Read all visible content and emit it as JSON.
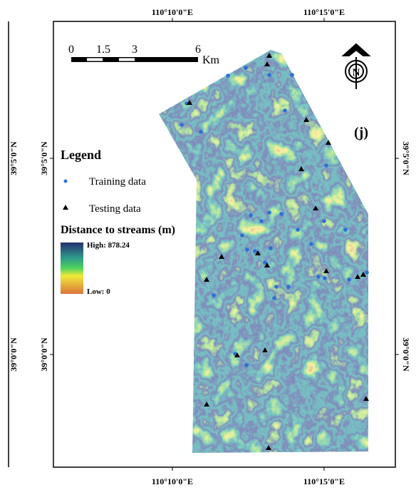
{
  "map": {
    "top_labels": [
      "110°10'0\"E",
      "110°15'0\"E"
    ],
    "bottom_labels": [
      "110°10'0\"E",
      "110°15'0\"E"
    ],
    "left_labels": [
      "39°5'0\"N",
      "39°0'0\"N"
    ],
    "right_labels": [
      "39°5'0\"N",
      "39°0'0\"N"
    ],
    "scale_bar": {
      "ticks": [
        "0",
        "1.5",
        "3",
        "6"
      ],
      "unit": "Km"
    },
    "north": "N",
    "panel_label": "(j)",
    "legend": {
      "title": "Legend",
      "items": [
        "Training data",
        "Testing data"
      ],
      "layer_title": "Distance to streams (m)",
      "high": "High: 878.24",
      "low": "Low: 0"
    }
  }
}
